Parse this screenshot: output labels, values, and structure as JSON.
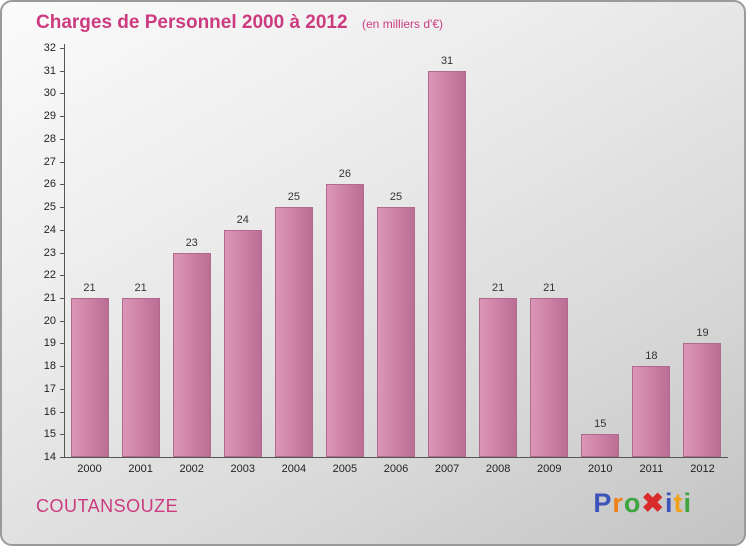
{
  "header": {
    "title": "Charges de Personnel 2000 à 2012",
    "subtitle": "(en milliers d'€)"
  },
  "footer": {
    "company": "COUTANSOUZE",
    "logo_letters": [
      {
        "ch": "P",
        "color": "#3d55bb"
      },
      {
        "ch": "r",
        "color": "#f08119"
      },
      {
        "ch": "o",
        "color": "#3fa53f"
      },
      {
        "ch": "✖",
        "color": "#d92b2b"
      },
      {
        "ch": "i",
        "color": "#3d55bb"
      },
      {
        "ch": "t",
        "color": "#f0a119"
      },
      {
        "ch": "i",
        "color": "#3fa53f"
      }
    ]
  },
  "colors": {
    "title_pink": "#cc3b80",
    "bar_light": "#dc96b8",
    "bar_dark": "#bc6e94",
    "axis": "#555555"
  },
  "chart_data": {
    "type": "bar",
    "title": "Charges de Personnel 2000 à 2012",
    "subtitle": "(en milliers d'€)",
    "categories": [
      "2000",
      "2001",
      "2002",
      "2003",
      "2004",
      "2005",
      "2006",
      "2007",
      "2008",
      "2009",
      "2010",
      "2011",
      "2012"
    ],
    "values": [
      21,
      21,
      23,
      24,
      25,
      26,
      25,
      31,
      21,
      21,
      15,
      18,
      19
    ],
    "xlabel": "",
    "ylabel": "",
    "ylim": [
      14,
      32
    ],
    "yticks": [
      14,
      15,
      16,
      17,
      18,
      19,
      20,
      21,
      22,
      23,
      24,
      25,
      26,
      27,
      28,
      29,
      30,
      31,
      32
    ],
    "grid": false,
    "legend": "none",
    "bar_color": "#cb7fa4",
    "value_labels": true
  }
}
